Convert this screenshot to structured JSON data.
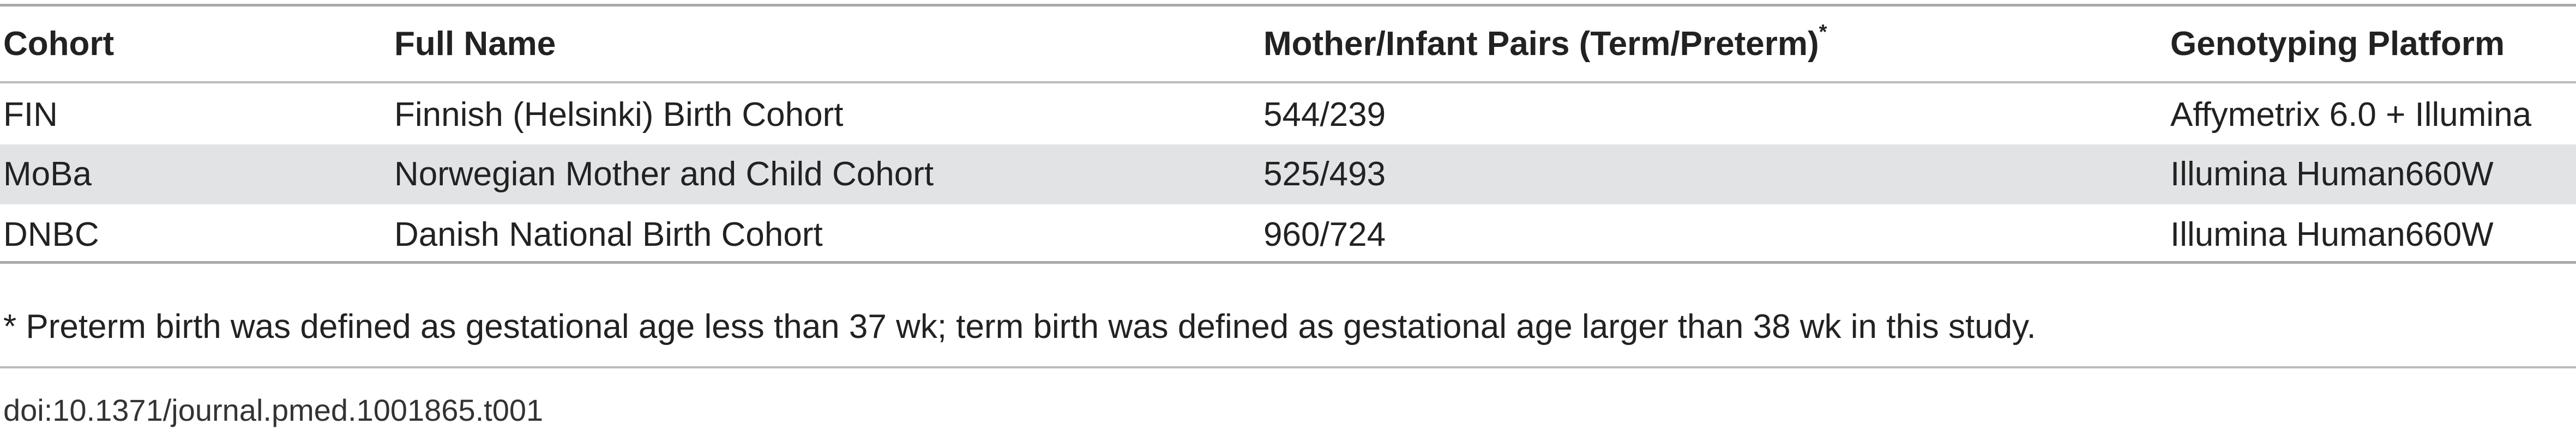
{
  "table": {
    "header": [
      "Cohort",
      "Full Name",
      "Mother/Infant Pairs (Term/Preterm)",
      "Genotyping Platform"
    ],
    "header_mark": "*",
    "rows": [
      [
        "FIN",
        "Finnish (Helsinki) Birth Cohort",
        "544/239",
        "Affymetrix 6.0 + Illumina"
      ],
      [
        "MoBa",
        "Norwegian Mother and Child Cohort",
        "525/493",
        "Illumina Human660W"
      ],
      [
        "DNBC",
        "Danish National Birth Cohort",
        "960/724",
        "Illumina Human660W"
      ]
    ]
  },
  "footnote": "* Preterm birth was defined as gestational age less than 37 wk; term birth was defined as gestational age larger than 38 wk in this study.",
  "doi": "doi:10.1371/journal.pmed.1001865.t001"
}
